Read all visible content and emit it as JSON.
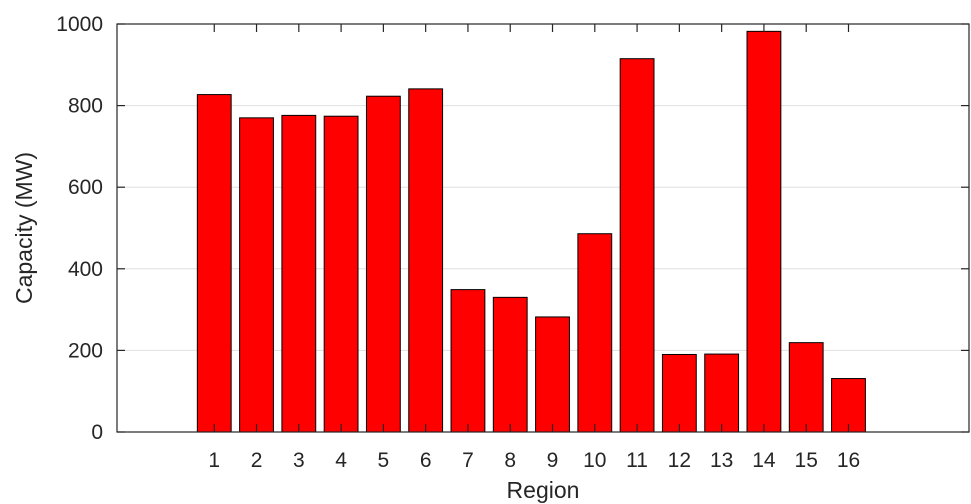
{
  "chart_data": {
    "type": "bar",
    "categories": [
      "1",
      "2",
      "3",
      "4",
      "5",
      "6",
      "7",
      "8",
      "9",
      "10",
      "11",
      "12",
      "13",
      "14",
      "15",
      "16"
    ],
    "values": [
      827,
      770,
      776,
      774,
      823,
      841,
      349,
      330,
      282,
      486,
      915,
      190,
      191,
      982,
      219,
      131
    ],
    "xlabel": "Region",
    "ylabel": "Capacity (MW)",
    "ylim": [
      0,
      1000
    ],
    "yticks": [
      "0",
      "200",
      "400",
      "600",
      "800",
      "1000"
    ],
    "grid": "horizontal",
    "bar_color": "#ff0000",
    "bar_edge_color": "#000000"
  }
}
